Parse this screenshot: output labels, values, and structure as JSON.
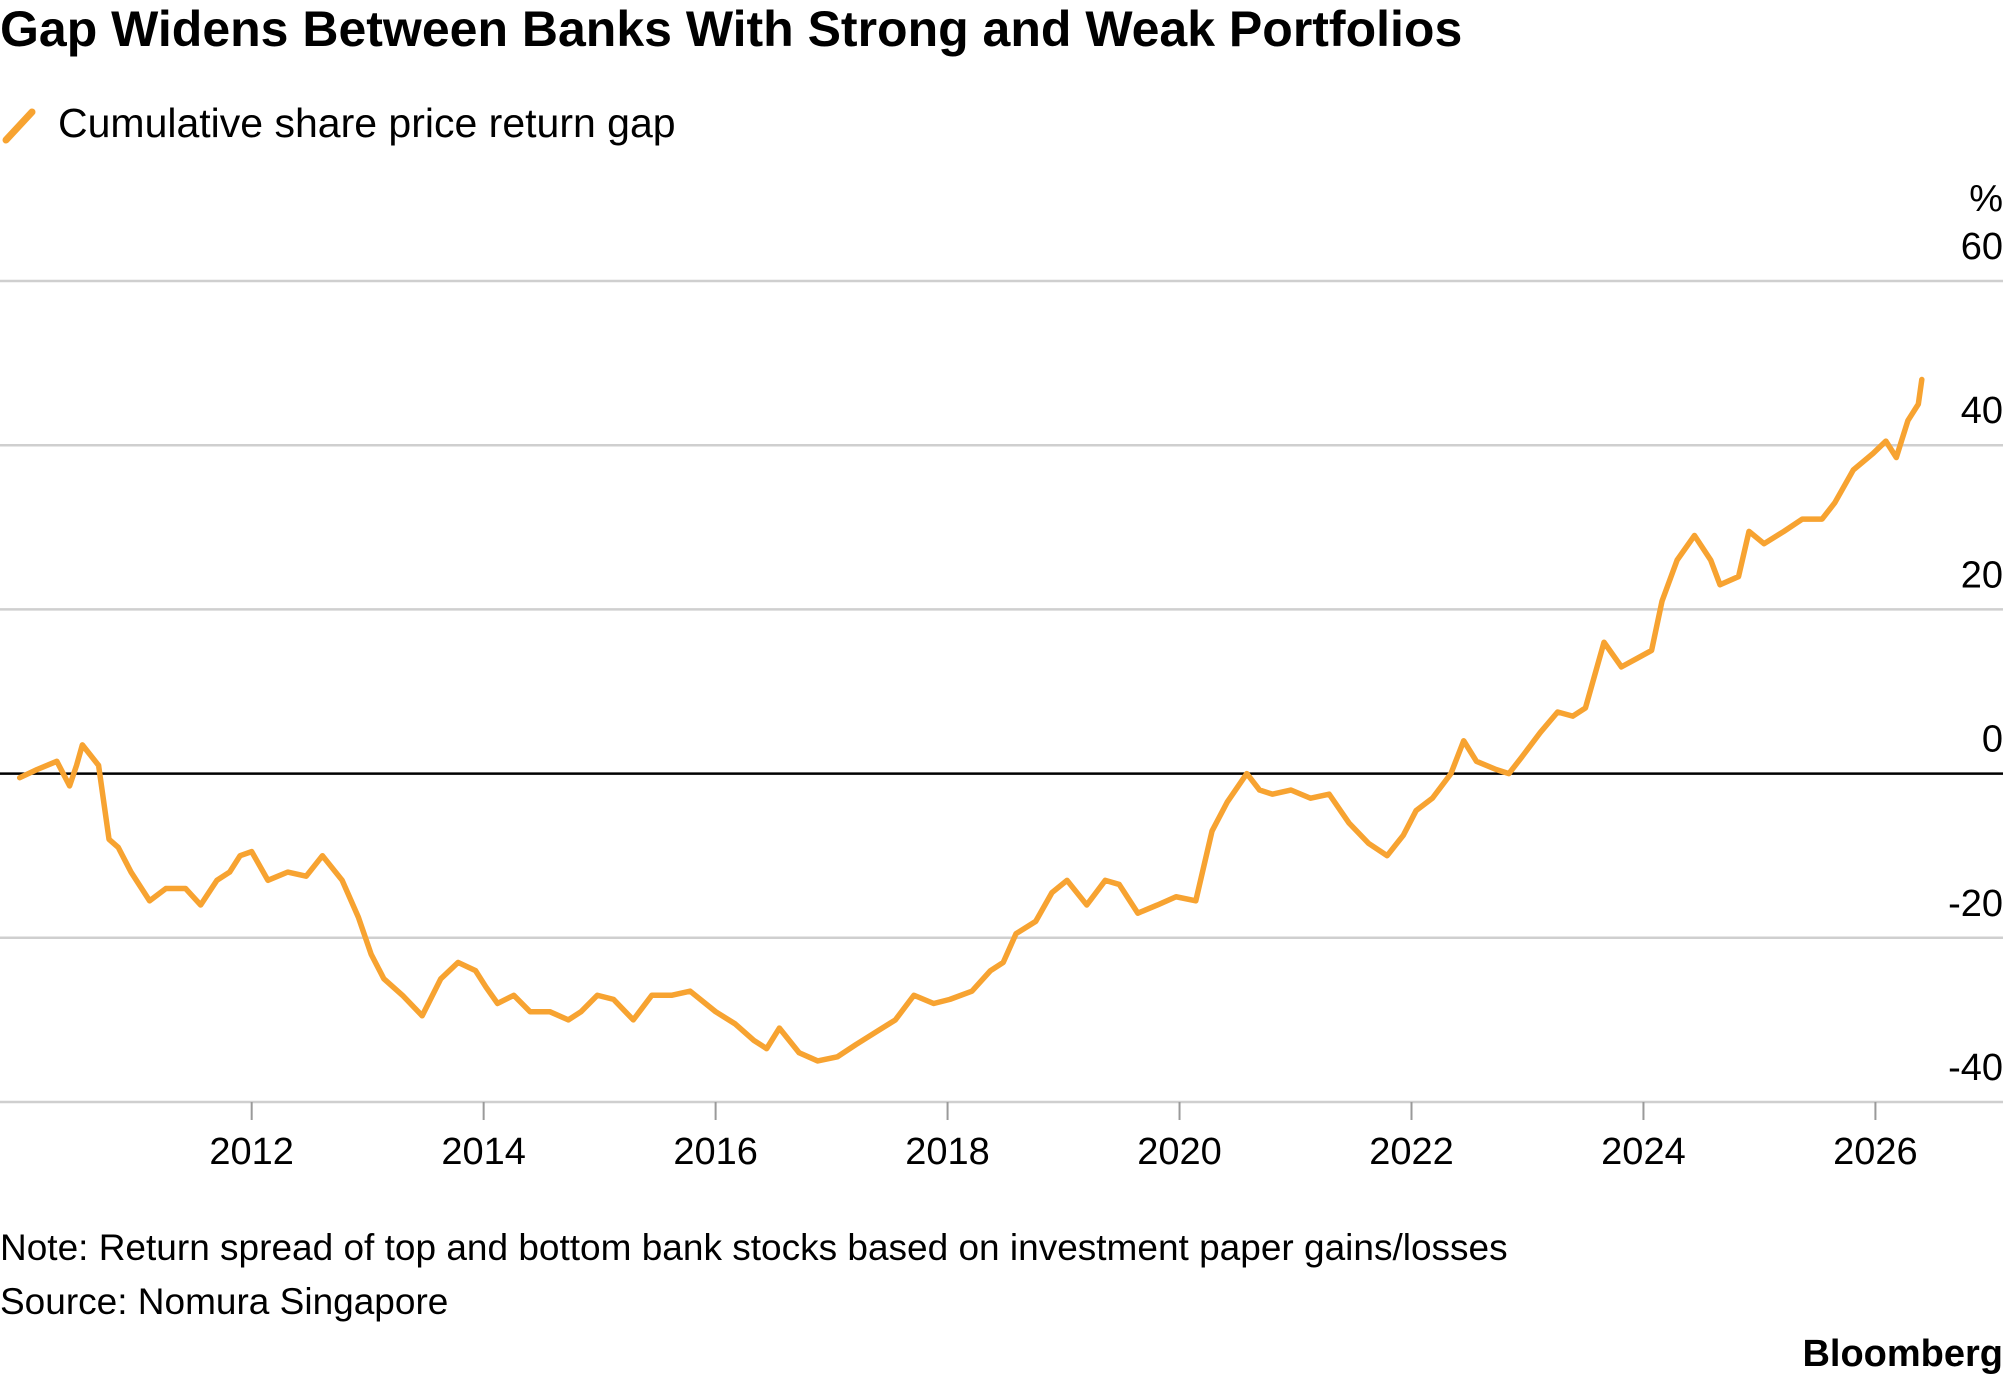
{
  "chart_data": {
    "type": "line",
    "title": "Gap Widens Between Banks With Strong and Weak Portfolios",
    "y_unit": "%",
    "note": "Note: Return spread of top and bottom bank stocks based on investment paper gains/losses",
    "source": "Source: Nomura Singapore",
    "brand": "Bloomberg",
    "xlim": [
      2009.83,
      2027.1
    ],
    "xticks": [
      2012,
      2014,
      2016,
      2018,
      2020,
      2022,
      2024,
      2026
    ],
    "ylim": [
      -40,
      60
    ],
    "yticks": [
      -40,
      -20,
      0,
      20,
      40,
      60
    ],
    "grid": true,
    "x": [
      2010.0,
      2010.15,
      2010.32,
      2010.43,
      2010.49,
      2010.54,
      2010.68,
      2010.77,
      2010.85,
      2010.96,
      2011.12,
      2011.26,
      2011.43,
      2011.56,
      2011.7,
      2011.81,
      2011.9,
      2012.0,
      2012.14,
      2012.31,
      2012.47,
      2012.61,
      2012.78,
      2012.92,
      2013.03,
      2013.14,
      2013.3,
      2013.47,
      2013.63,
      2013.78,
      2013.93,
      2014.02,
      2014.12,
      2014.26,
      2014.4,
      2014.57,
      2014.73,
      2014.84,
      2014.98,
      2015.12,
      2015.29,
      2015.45,
      2015.62,
      2015.78,
      2016.0,
      2016.17,
      2016.33,
      2016.44,
      2016.55,
      2016.72,
      2016.88,
      2017.05,
      2017.21,
      2017.38,
      2017.55,
      2017.71,
      2017.88,
      2018.02,
      2018.21,
      2018.37,
      2018.48,
      2018.59,
      2018.76,
      2018.9,
      2019.03,
      2019.2,
      2019.36,
      2019.48,
      2019.64,
      2019.81,
      2019.97,
      2020.14,
      2020.28,
      2020.41,
      2020.58,
      2020.69,
      2020.8,
      2020.96,
      2021.13,
      2021.29,
      2021.46,
      2021.63,
      2021.79,
      2021.93,
      2022.04,
      2022.18,
      2022.34,
      2022.45,
      2022.56,
      2022.73,
      2022.84,
      2022.95,
      2023.11,
      2023.26,
      2023.39,
      2023.5,
      2023.66,
      2023.81,
      2023.94,
      2024.07,
      2024.16,
      2024.29,
      2024.44,
      2024.58,
      2024.66,
      2024.82,
      2024.91,
      2025.04,
      2025.21,
      2025.37,
      2025.54,
      2025.65,
      2025.81,
      2025.98,
      2026.09,
      2026.18,
      2026.28,
      2026.37,
      2026.4
    ],
    "series": [
      {
        "name": "Cumulative share price return gap",
        "color": "#f7a331",
        "values": [
          -0.5,
          0.5,
          1.5,
          -1.5,
          1,
          3.5,
          1,
          -8,
          -9,
          -12,
          -15.5,
          -14,
          -14,
          -16,
          -13,
          -12,
          -10,
          -9.5,
          -13,
          -12,
          -12.5,
          -10,
          -13,
          -17.5,
          -22,
          -25,
          -27,
          -29.5,
          -25,
          -23,
          -24,
          -26,
          -28,
          -27,
          -29,
          -29,
          -30,
          -29,
          -27,
          -27.5,
          -30,
          -27,
          -27,
          -26.5,
          -29,
          -30.5,
          -32.5,
          -33.5,
          -31,
          -34,
          -35,
          -34.5,
          -33,
          -31.5,
          -30,
          -27,
          -28,
          -27.5,
          -26.5,
          -24,
          -23,
          -19.5,
          -18,
          -14.5,
          -13,
          -16,
          -13,
          -13.5,
          -17,
          -16,
          -15,
          -15.5,
          -7,
          -3.5,
          0,
          -2,
          -2.5,
          -2,
          -3,
          -2.5,
          -6,
          -8.5,
          -10,
          -7.5,
          -4.5,
          -3,
          0,
          4,
          1.5,
          0.5,
          0,
          2,
          5,
          7.5,
          7,
          8,
          16,
          13,
          14,
          15,
          21,
          26,
          29,
          26,
          23,
          24,
          29.5,
          28,
          29.5,
          31,
          31,
          33,
          37,
          39,
          40.5,
          38.5,
          43,
          45,
          48
        ]
      }
    ]
  }
}
